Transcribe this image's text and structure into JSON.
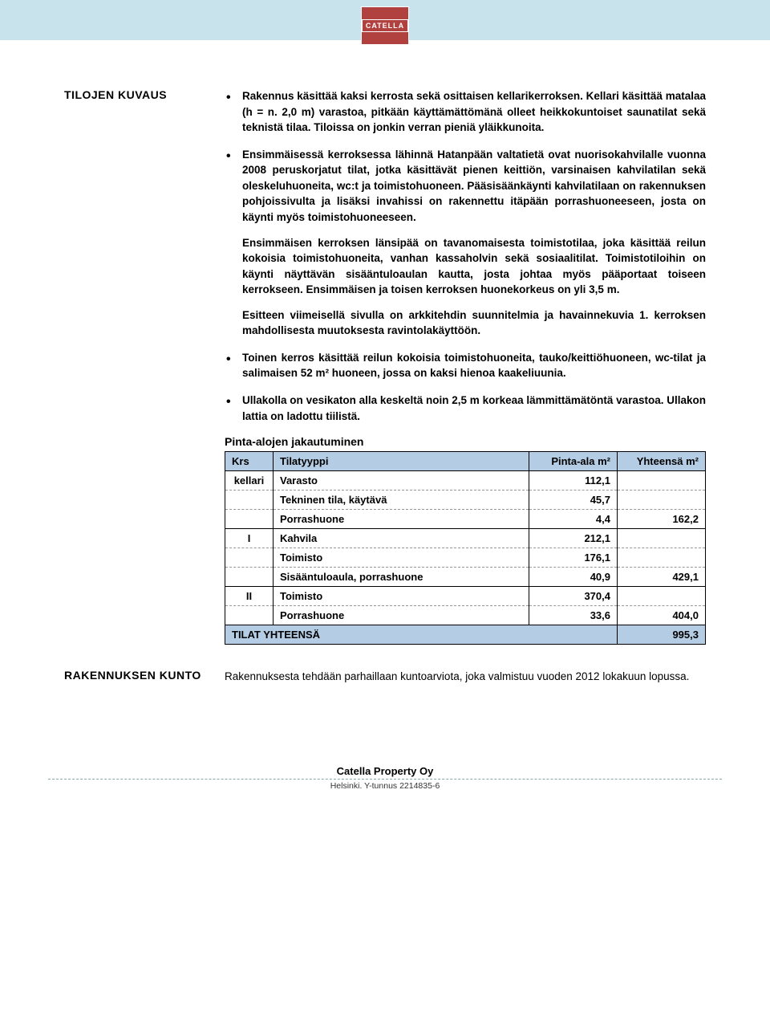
{
  "logo_text": "CATELLA",
  "section1_heading": "TILOJEN KUVAUS",
  "bullets": [
    {
      "main": "Rakennus käsittää kaksi kerrosta sekä osittaisen kellarikerroksen. Kellari käsittää matalaa (h = n. 2,0 m) varastoa, pitkään käyttämättömänä olleet heikkokuntoiset saunatilat sekä teknistä tilaa. Tiloissa on jonkin verran pieniä yläikkunoita."
    },
    {
      "main": "Ensimmäisessä kerroksessa lähinnä Hatanpään valtatietä ovat nuorisokahvilalle vuonna 2008 peruskorjatut tilat, jotka käsittävät pienen keittiön, varsinaisen kahvilatilan sekä oleskeluhuoneita, wc:t ja toimistohuoneen. Pääsisäänkäynti kahvilatilaan on rakennuksen pohjoissivulta ja lisäksi invahissi on rakennettu itäpään porrashuoneeseen, josta on käynti myös toimistohuoneeseen.",
      "sub1": "Ensimmäisen kerroksen länsipää on tavanomaisesta toimistotilaa, joka käsittää reilun kokoisia toimistohuoneita, vanhan kassaholvin sekä sosiaalitilat. Toimistotiloihin on käynti näyttävän sisääntuloaulan kautta, josta johtaa myös pääportaat toiseen kerrokseen. Ensimmäisen ja toisen kerroksen huonekorkeus on yli 3,5 m.",
      "sub2": "Esitteen viimeisellä sivulla on arkkitehdin suunnitelmia ja havainnekuvia 1. kerroksen mahdollisesta muutoksesta ravintolakäyttöön."
    },
    {
      "main": "Toinen kerros käsittää reilun kokoisia toimistohuoneita, tauko/keittiöhuoneen, wc-tilat ja salimaisen 52 m² huoneen, jossa on kaksi hienoa kaakeliuunia."
    },
    {
      "main": "Ullakolla on vesikaton alla keskeltä noin 2,5 m korkeaa lämmittämätöntä varastoa. Ullakon lattia on ladottu tiilistä."
    }
  ],
  "table": {
    "title": "Pinta-alojen jakautuminen",
    "headers": {
      "krs": "Krs",
      "tyyppi": "Tilatyyppi",
      "ala": "Pinta-ala m²",
      "yht": "Yhteensä m²"
    },
    "groups": [
      {
        "krs": "kellari",
        "rows": [
          {
            "tyyppi": "Varasto",
            "ala": "112,1",
            "yht": ""
          },
          {
            "tyyppi": "Tekninen tila, käytävä",
            "ala": "45,7",
            "yht": ""
          },
          {
            "tyyppi": "Porrashuone",
            "ala": "4,4",
            "yht": "162,2"
          }
        ]
      },
      {
        "krs": "I",
        "rows": [
          {
            "tyyppi": "Kahvila",
            "ala": "212,1",
            "yht": ""
          },
          {
            "tyyppi": "Toimisto",
            "ala": "176,1",
            "yht": ""
          },
          {
            "tyyppi": "Sisääntuloaula, porrashuone",
            "ala": "40,9",
            "yht": "429,1"
          }
        ]
      },
      {
        "krs": "II",
        "rows": [
          {
            "tyyppi": "Toimisto",
            "ala": "370,4",
            "yht": ""
          },
          {
            "tyyppi": "Porrashuone",
            "ala": "33,6",
            "yht": "404,0"
          }
        ]
      }
    ],
    "total_label": "TILAT YHTEENSÄ",
    "total_value": "995,3",
    "header_bg": "#b4cce4",
    "border_color": "#000000"
  },
  "section2_heading": "RAKENNUKSEN KUNTO",
  "section2_text": "Rakennuksesta tehdään parhaillaan kuntoarviota, joka valmistuu vuoden 2012 lokakuun lopussa.",
  "footer": {
    "company": "Catella Property Oy",
    "sub": "Helsinki. Y-tunnus 2214835-6"
  }
}
